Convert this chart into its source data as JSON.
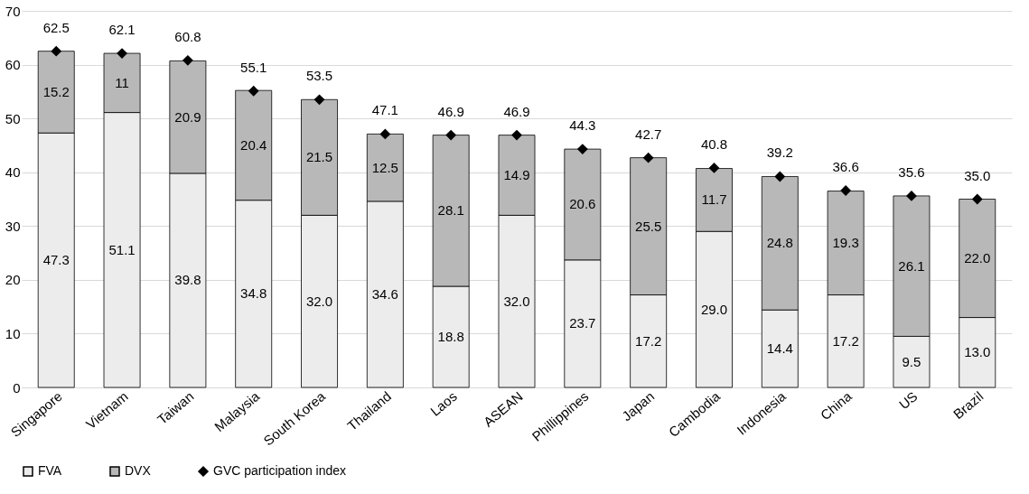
{
  "chart_data": {
    "type": "bar",
    "stacked": true,
    "categories": [
      "Singapore",
      "Vietnam",
      "Taiwan",
      "Malaysia",
      "South Korea",
      "Thailand",
      "Laos",
      "ASEAN",
      "Phillippines",
      "Japan",
      "Cambodia",
      "Indonesia",
      "China",
      "US",
      "Brazil"
    ],
    "series": [
      {
        "name": "FVA",
        "color": "#ececec",
        "values": [
          47.3,
          51.1,
          39.8,
          34.8,
          32.0,
          34.6,
          18.8,
          32.0,
          23.7,
          17.2,
          29.0,
          14.4,
          17.2,
          9.5,
          13.0
        ],
        "value_labels": [
          "47.3",
          "51.1",
          "39.8",
          "34.8",
          "32.0",
          "34.6",
          "18.8",
          "32.0",
          "23.7",
          "17.2",
          "29.0",
          "14.4",
          "17.2",
          "9.5",
          "13.0"
        ]
      },
      {
        "name": "DVX",
        "color": "#b8b8b8",
        "values": [
          15.2,
          11,
          20.9,
          20.4,
          21.5,
          12.5,
          28.1,
          14.9,
          20.6,
          25.5,
          11.7,
          24.8,
          19.3,
          26.1,
          22.0
        ],
        "value_labels": [
          "15.2",
          "11",
          "20.9",
          "20.4",
          "21.5",
          "12.5",
          "28.1",
          "14.9",
          "20.6",
          "25.5",
          "11.7",
          "24.8",
          "19.3",
          "26.1",
          "22.0"
        ]
      },
      {
        "name": "GVC participation index",
        "type": "scatter",
        "marker": "diamond",
        "color": "#000000",
        "values": [
          62.5,
          62.1,
          60.8,
          55.1,
          53.5,
          47.1,
          46.9,
          46.9,
          44.3,
          42.7,
          40.8,
          39.2,
          36.6,
          35.6,
          35.0
        ],
        "value_labels": [
          "62.5",
          "62.1",
          "60.8",
          "55.1",
          "53.5",
          "47.1",
          "46.9",
          "46.9",
          "44.3",
          "42.7",
          "40.8",
          "39.2",
          "36.6",
          "35.6",
          "35.0"
        ]
      }
    ],
    "ylim": [
      0,
      70
    ],
    "yticks": [
      0,
      10,
      20,
      30,
      40,
      50,
      60,
      70
    ],
    "grid": "y",
    "legend": "bottom"
  }
}
